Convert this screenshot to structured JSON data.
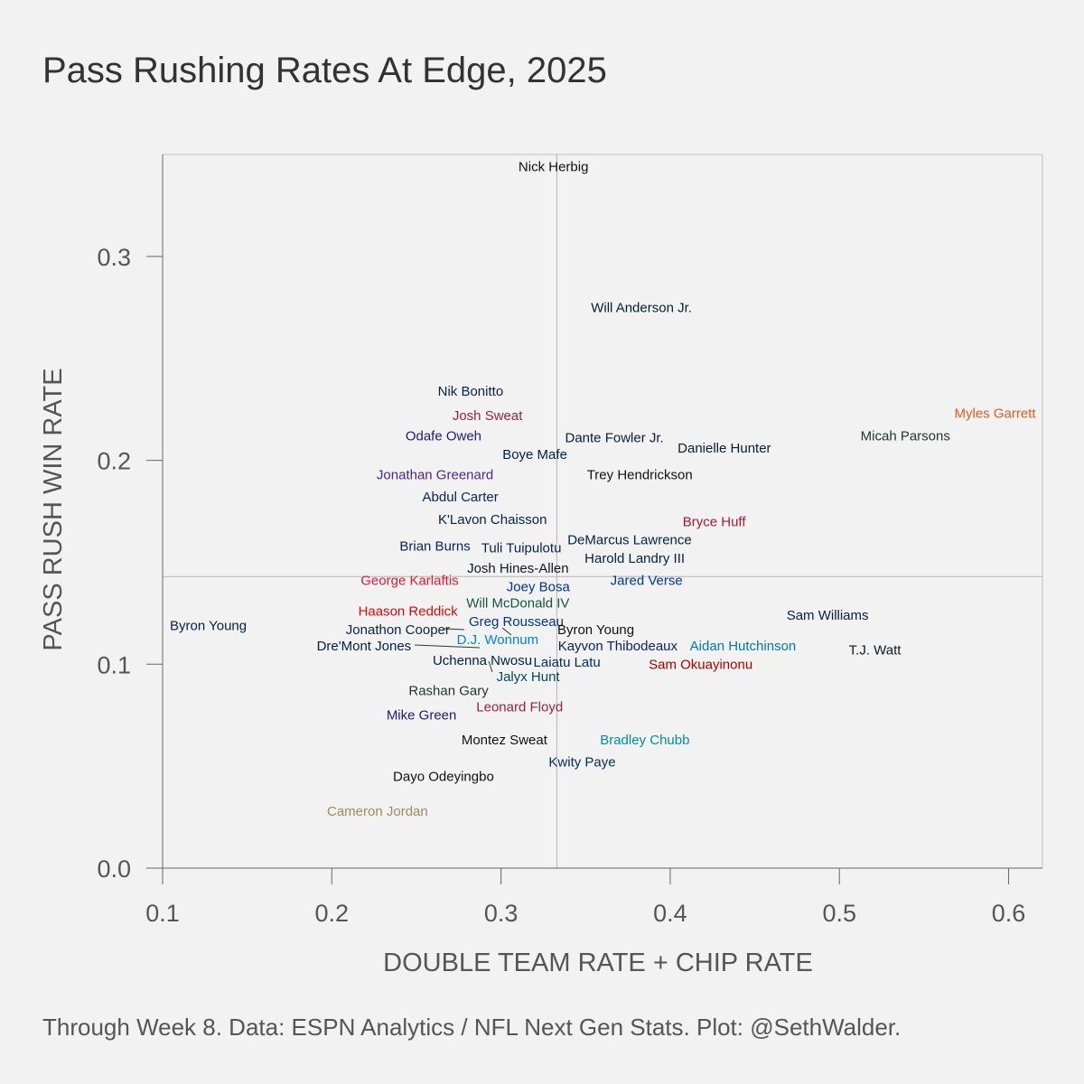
{
  "title": "Pass Rushing Rates At Edge, 2025",
  "caption": "Through Week 8. Data: ESPN Analytics / NFL Next Gen Stats. Plot: @SethWalder.",
  "chart_data": {
    "type": "scatter",
    "title": "Pass Rushing Rates At Edge, 2025",
    "xlabel": "DOUBLE TEAM RATE + CHIP RATE",
    "ylabel": "PASS RUSH WIN RATE",
    "xlim": [
      0.1,
      0.62
    ],
    "ylim": [
      0.0,
      0.35
    ],
    "xticks": [
      "0.1",
      "0.2",
      "0.3",
      "0.4",
      "0.5",
      "0.6"
    ],
    "yticks": [
      "0.0",
      "0.1",
      "0.2",
      "0.3"
    ],
    "reference_lines": {
      "x": 0.333,
      "y": 0.143
    },
    "grid": false,
    "points": [
      {
        "label": "Nick Herbig",
        "x": 0.331,
        "y": 0.344,
        "color": "#111111"
      },
      {
        "label": "Will Anderson Jr.",
        "x": 0.383,
        "y": 0.275,
        "color": "#03202f"
      },
      {
        "label": "Nik Bonitto",
        "x": 0.282,
        "y": 0.234,
        "color": "#0a2343"
      },
      {
        "label": "Josh Sweat",
        "x": 0.292,
        "y": 0.222,
        "color": "#97233f"
      },
      {
        "label": "Myles Garrett",
        "x": 0.592,
        "y": 0.223,
        "color": "#e05a1c"
      },
      {
        "label": "Micah Parsons",
        "x": 0.539,
        "y": 0.212,
        "color": "#203731"
      },
      {
        "label": "Odafe Oweh",
        "x": 0.266,
        "y": 0.212,
        "color": "#241773"
      },
      {
        "label": "Dante Fowler Jr.",
        "x": 0.367,
        "y": 0.211,
        "color": "#041e42"
      },
      {
        "label": "Danielle Hunter",
        "x": 0.432,
        "y": 0.206,
        "color": "#03202f"
      },
      {
        "label": "Boye Mafe",
        "x": 0.32,
        "y": 0.203,
        "color": "#002244"
      },
      {
        "label": "Jonathan Greenard",
        "x": 0.261,
        "y": 0.193,
        "color": "#4f2683"
      },
      {
        "label": "Trey Hendrickson",
        "x": 0.382,
        "y": 0.193,
        "color": "#111111"
      },
      {
        "label": "Abdul Carter",
        "x": 0.276,
        "y": 0.182,
        "color": "#0b2265"
      },
      {
        "label": "K'Lavon Chaisson",
        "x": 0.295,
        "y": 0.171,
        "color": "#002244"
      },
      {
        "label": "Bryce Huff",
        "x": 0.426,
        "y": 0.17,
        "color": "#a71930"
      },
      {
        "label": "DeMarcus Lawrence",
        "x": 0.376,
        "y": 0.161,
        "color": "#002244"
      },
      {
        "label": "Brian Burns",
        "x": 0.261,
        "y": 0.158,
        "color": "#0b2265"
      },
      {
        "label": "Tuli Tuipulotu",
        "x": 0.312,
        "y": 0.157,
        "color": "#0a2342"
      },
      {
        "label": "Harold Landry III",
        "x": 0.379,
        "y": 0.152,
        "color": "#002244"
      },
      {
        "label": "Josh Hines-Allen",
        "x": 0.31,
        "y": 0.147,
        "color": "#101820"
      },
      {
        "label": "George Karlaftis",
        "x": 0.246,
        "y": 0.141,
        "color": "#e31837"
      },
      {
        "label": "Jared Verse",
        "x": 0.386,
        "y": 0.141,
        "color": "#003594"
      },
      {
        "label": "Joey Bosa",
        "x": 0.322,
        "y": 0.138,
        "color": "#00338d"
      },
      {
        "label": "Will McDonald IV",
        "x": 0.31,
        "y": 0.13,
        "color": "#125740"
      },
      {
        "label": "Haason Reddick",
        "x": 0.245,
        "y": 0.126,
        "color": "#d50a0a"
      },
      {
        "label": "Sam Williams",
        "x": 0.493,
        "y": 0.124,
        "color": "#041e42"
      },
      {
        "label": "Greg Rousseau",
        "x": 0.309,
        "y": 0.121,
        "color": "#00338d"
      },
      {
        "label": "Byron Young",
        "x": 0.127,
        "y": 0.119,
        "color": "#002244"
      },
      {
        "label": "Jonathon Cooper",
        "x": 0.239,
        "y": 0.117,
        "color": "#0a2343"
      },
      {
        "label": "Byron Young",
        "x": 0.356,
        "y": 0.117,
        "color": "#111111"
      },
      {
        "label": "D.J. Wonnum",
        "x": 0.298,
        "y": 0.112,
        "color": "#0085ca"
      },
      {
        "label": "Aidan Hutchinson",
        "x": 0.443,
        "y": 0.109,
        "color": "#0076b6"
      },
      {
        "label": "Kayvon Thibodeaux",
        "x": 0.369,
        "y": 0.109,
        "color": "#0b2265"
      },
      {
        "label": "Dre'Mont Jones",
        "x": 0.219,
        "y": 0.109,
        "color": "#002244"
      },
      {
        "label": "T.J. Watt",
        "x": 0.521,
        "y": 0.107,
        "color": "#101820"
      },
      {
        "label": "Uchenna Nwosu",
        "x": 0.289,
        "y": 0.102,
        "color": "#002244"
      },
      {
        "label": "Laiatu Latu",
        "x": 0.339,
        "y": 0.101,
        "color": "#002c5f"
      },
      {
        "label": "Sam Okuayinonu",
        "x": 0.418,
        "y": 0.1,
        "color": "#aa0000"
      },
      {
        "label": "Jalyx Hunt",
        "x": 0.316,
        "y": 0.094,
        "color": "#004c54"
      },
      {
        "label": "Rashan Gary",
        "x": 0.269,
        "y": 0.087,
        "color": "#203731"
      },
      {
        "label": "Leonard Floyd",
        "x": 0.311,
        "y": 0.079,
        "color": "#97233f"
      },
      {
        "label": "Mike Green",
        "x": 0.253,
        "y": 0.075,
        "color": "#241773"
      },
      {
        "label": "Montez Sweat",
        "x": 0.302,
        "y": 0.063,
        "color": "#111111"
      },
      {
        "label": "Bradley Chubb",
        "x": 0.385,
        "y": 0.063,
        "color": "#008e97"
      },
      {
        "label": "Kwity Paye",
        "x": 0.348,
        "y": 0.052,
        "color": "#002c5f"
      },
      {
        "label": "Dayo Odeyingbo",
        "x": 0.266,
        "y": 0.045,
        "color": "#111111"
      },
      {
        "label": "Cameron Jordan",
        "x": 0.227,
        "y": 0.028,
        "color": "#a08a58"
      }
    ]
  }
}
